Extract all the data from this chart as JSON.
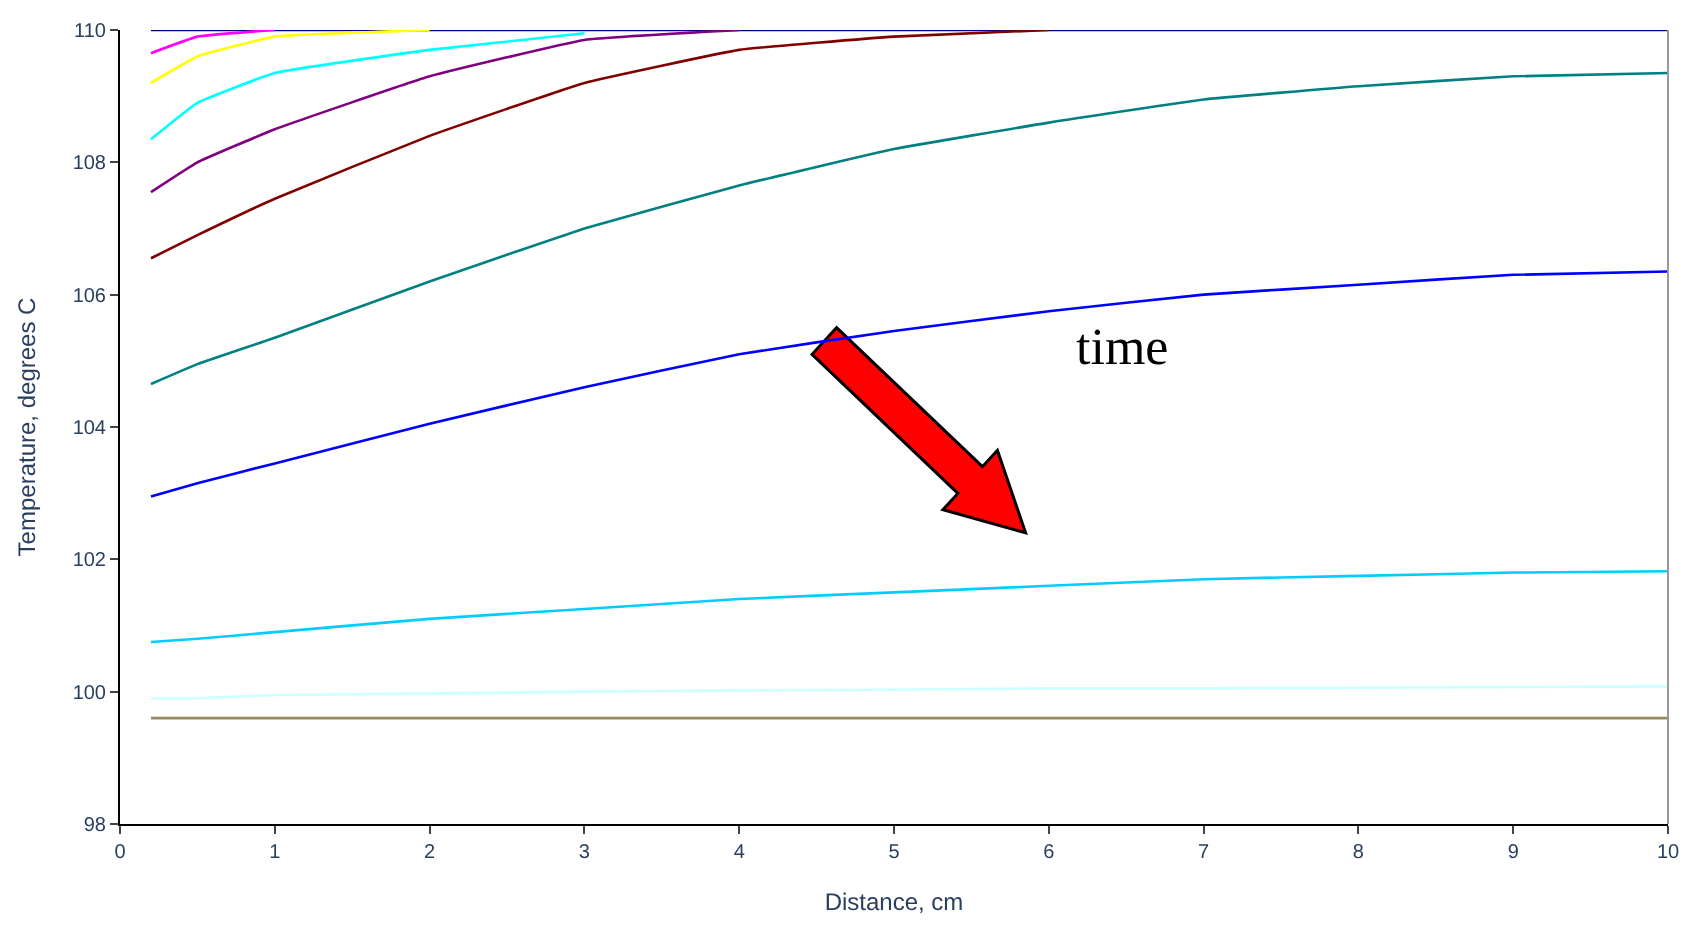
{
  "chart_data": {
    "type": "line",
    "xlabel": "Distance, cm",
    "ylabel": "Temperature, degrees C",
    "x": [
      0.2,
      0.5,
      1,
      2,
      3,
      4,
      5,
      6,
      7,
      8,
      9,
      10
    ],
    "xlim": [
      0,
      10
    ],
    "xticks": [
      0,
      1,
      2,
      3,
      4,
      5,
      6,
      7,
      8,
      9,
      10
    ],
    "ylim": [
      98,
      110
    ],
    "yticks": [
      98,
      100,
      102,
      104,
      106,
      108,
      110
    ],
    "marker": "none",
    "line_style": "solid",
    "annotations": [
      "time"
    ],
    "series": [
      {
        "color": "#000080",
        "values": [
          110,
          110,
          null,
          null,
          110,
          null,
          110,
          null,
          110,
          110,
          110,
          110
        ]
      },
      {
        "color": "#ff00ff",
        "values": [
          109.65,
          109.9,
          110,
          null,
          null,
          null,
          null,
          null,
          null,
          null,
          null,
          null
        ]
      },
      {
        "color": "#ffff00",
        "values": [
          109.2,
          109.6,
          109.9,
          110,
          null,
          null,
          null,
          null,
          null,
          null,
          null,
          null
        ]
      },
      {
        "color": "#00ffff",
        "values": [
          108.35,
          108.9,
          109.35,
          109.7,
          109.95,
          null,
          null,
          null,
          null,
          null,
          null,
          null
        ]
      },
      {
        "color": "#800080",
        "values": [
          107.55,
          108.0,
          108.5,
          109.3,
          109.85,
          110,
          null,
          null,
          null,
          null,
          null,
          null
        ]
      },
      {
        "color": "#800000",
        "values": [
          106.55,
          106.9,
          107.45,
          108.4,
          109.2,
          109.7,
          109.9,
          110,
          null,
          null,
          null,
          null
        ]
      },
      {
        "color": "#008080",
        "values": [
          104.65,
          104.95,
          105.35,
          106.2,
          107.0,
          107.65,
          108.2,
          108.6,
          108.95,
          109.15,
          109.3,
          109.35
        ]
      },
      {
        "color": "#0000ff",
        "values": [
          102.95,
          103.15,
          103.45,
          104.05,
          104.6,
          105.1,
          105.45,
          105.75,
          106.0,
          106.15,
          106.3,
          106.35
        ]
      },
      {
        "color": "#00ccff",
        "values": [
          100.75,
          100.8,
          100.9,
          101.1,
          101.25,
          101.4,
          101.5,
          101.6,
          101.7,
          101.75,
          101.8,
          101.82
        ]
      },
      {
        "color": "#ccffff",
        "values": [
          99.9,
          99.9,
          99.95,
          99.97,
          100.0,
          100.02,
          100.03,
          100.05,
          100.05,
          100.06,
          100.07,
          100.08
        ]
      },
      {
        "color": "#998866",
        "values": [
          99.6,
          99.6,
          99.6,
          99.6,
          99.6,
          99.6,
          99.6,
          99.6,
          99.6,
          99.6,
          99.6,
          99.6
        ]
      }
    ]
  }
}
